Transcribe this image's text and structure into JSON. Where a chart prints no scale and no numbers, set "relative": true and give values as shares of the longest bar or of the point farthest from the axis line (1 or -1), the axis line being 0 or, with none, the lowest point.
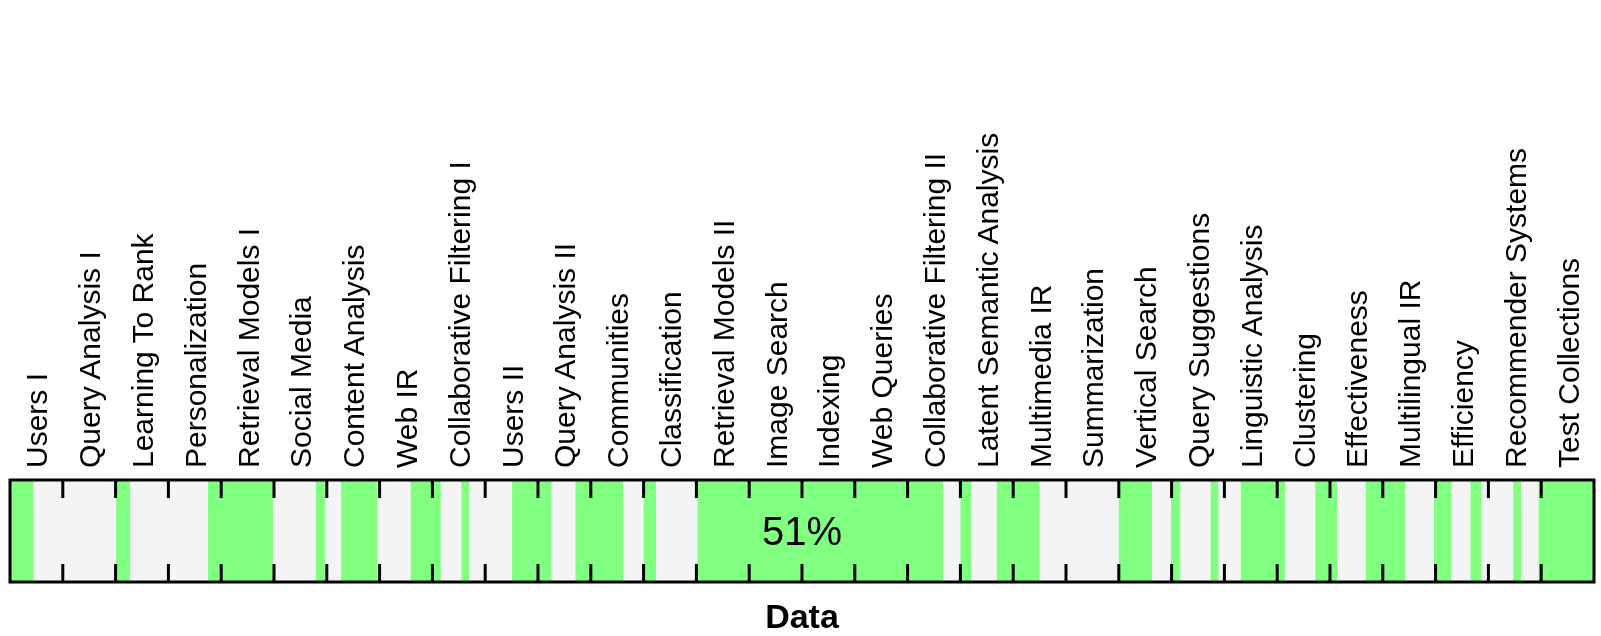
{
  "chart_data": {
    "type": "bar",
    "orientation": "horizontal",
    "stacked": true,
    "relative": true,
    "xlabel": "Data",
    "categories": [
      null
    ],
    "annotations": [
      "Users I",
      "Query Analysis I",
      "Learning To Rank",
      "Personalization",
      "Retrieval Models I",
      "Social Media",
      "Content Analysis",
      "Web IR",
      "Collaborative Filtering I",
      "Users II",
      "Query Analysis II",
      "Communities",
      "Classification",
      "Retrieval Models II",
      "Image Search",
      "Indexing",
      "Web Queries",
      "Collaborative Filtering II",
      "Latent Semantic Analysis",
      "Multimedia IR",
      "Summarization",
      "Vertical Search",
      "Query Suggestions",
      "Linguistic Analysis",
      "Clustering",
      "Effectiveness",
      "Multilingual IR",
      "Efficiency",
      "Recommender Systems",
      "Test Collections",
      "51%"
    ],
    "series": [
      {
        "color": "#80ff80",
        "values": [
          0.015
        ]
      },
      {
        "color": "#f4f4f4",
        "values": [
          0.052
        ]
      },
      {
        "color": "#80ff80",
        "values": [
          0.009
        ]
      },
      {
        "color": "#f4f4f4",
        "values": [
          0.049
        ]
      },
      {
        "color": "#80ff80",
        "values": [
          0.041
        ]
      },
      {
        "color": "#f4f4f4",
        "values": [
          0.027
        ]
      },
      {
        "color": "#80ff80",
        "values": [
          0.006
        ]
      },
      {
        "color": "#f4f4f4",
        "values": [
          0.01
        ]
      },
      {
        "color": "#80ff80",
        "values": [
          0.023
        ]
      },
      {
        "color": "#f4f4f4",
        "values": [
          0.021
        ]
      },
      {
        "color": "#80ff80",
        "values": [
          0.019
        ]
      },
      {
        "color": "#f4f4f4",
        "values": [
          0.013
        ]
      },
      {
        "color": "#80ff80",
        "values": [
          0.005
        ]
      },
      {
        "color": "#f4f4f4",
        "values": [
          0.027
        ]
      },
      {
        "color": "#80ff80",
        "values": [
          0.025
        ]
      },
      {
        "color": "#f4f4f4",
        "values": [
          0.015
        ]
      },
      {
        "color": "#80ff80",
        "values": [
          0.03
        ]
      },
      {
        "color": "#f4f4f4",
        "values": [
          0.013
        ]
      },
      {
        "color": "#80ff80",
        "values": [
          0.008
        ]
      },
      {
        "color": "#f4f4f4",
        "values": [
          0.026
        ]
      },
      {
        "color": "#80ff80",
        "values": [
          0.155
        ]
      },
      {
        "color": "#f4f4f4",
        "values": [
          0.011
        ]
      },
      {
        "color": "#80ff80",
        "values": [
          0.007
        ]
      },
      {
        "color": "#f4f4f4",
        "values": [
          0.016
        ]
      },
      {
        "color": "#80ff80",
        "values": [
          0.027
        ]
      },
      {
        "color": "#f4f4f4",
        "values": [
          0.05
        ]
      },
      {
        "color": "#80ff80",
        "values": [
          0.021
        ]
      },
      {
        "color": "#f4f4f4",
        "values": [
          0.012
        ]
      },
      {
        "color": "#80ff80",
        "values": [
          0.006
        ]
      },
      {
        "color": "#f4f4f4",
        "values": [
          0.019
        ]
      },
      {
        "color": "#80ff80",
        "values": [
          0.005
        ]
      },
      {
        "color": "#f4f4f4",
        "values": [
          0.014
        ]
      },
      {
        "color": "#80ff80",
        "values": [
          0.028
        ]
      },
      {
        "color": "#f4f4f4",
        "values": [
          0.019
        ]
      },
      {
        "color": "#80ff80",
        "values": [
          0.014
        ]
      },
      {
        "color": "#f4f4f4",
        "values": [
          0.018
        ]
      },
      {
        "color": "#80ff80",
        "values": [
          0.025
        ]
      },
      {
        "color": "#f4f4f4",
        "values": [
          0.018
        ]
      },
      {
        "color": "#80ff80",
        "values": [
          0.011
        ]
      },
      {
        "color": "#f4f4f4",
        "values": [
          0.012
        ]
      },
      {
        "color": "#80ff80",
        "values": [
          0.007
        ]
      },
      {
        "color": "#f4f4f4",
        "values": [
          0.02
        ]
      },
      {
        "color": "#80ff80",
        "values": [
          0.005
        ]
      },
      {
        "color": "#f4f4f4",
        "values": [
          0.011
        ]
      },
      {
        "color": "#80ff80",
        "values": [
          0.035
        ]
      }
    ]
  }
}
